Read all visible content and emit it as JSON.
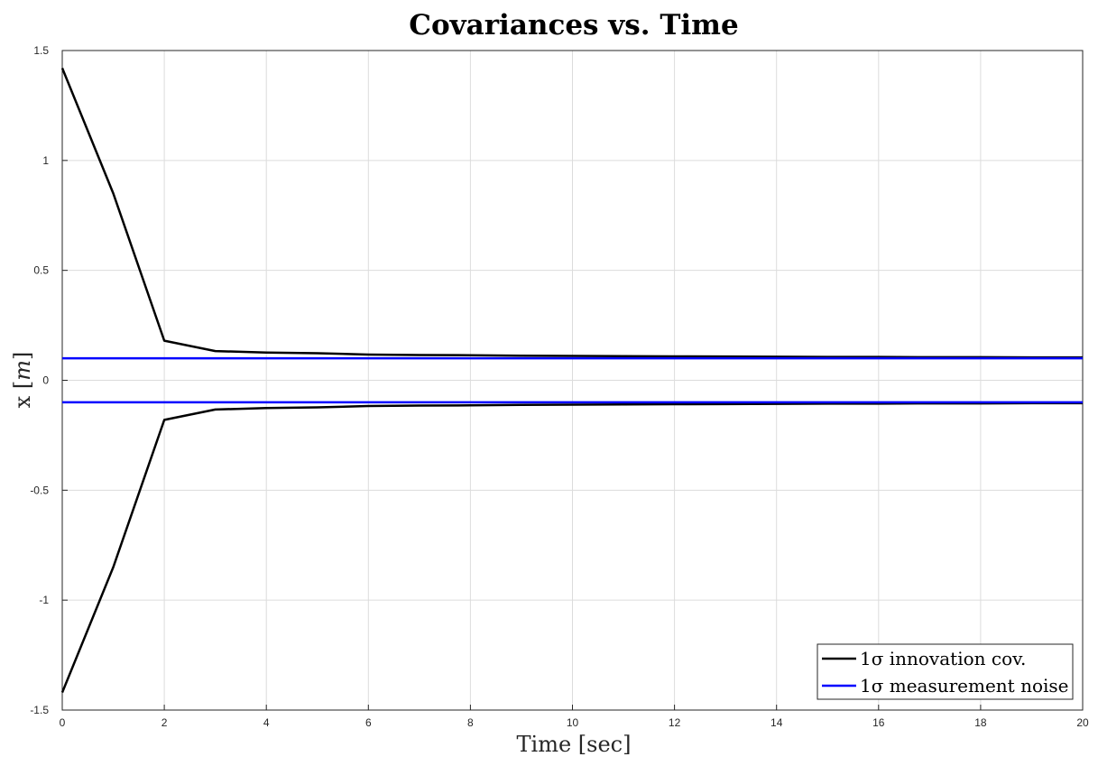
{
  "chart_data": {
    "type": "line",
    "title": "Covariances vs. Time",
    "xlabel": "Time [sec]",
    "ylabel_prefix": "x [",
    "ylabel_italic": "m",
    "ylabel_suffix": "]",
    "xlim": [
      0,
      20
    ],
    "ylim": [
      -1.5,
      1.5
    ],
    "xticks": [
      0,
      2,
      4,
      6,
      8,
      10,
      12,
      14,
      16,
      18,
      20
    ],
    "yticks": [
      -1.5,
      -1,
      -0.5,
      0,
      0.5,
      1,
      1.5
    ],
    "xtick_labels": [
      "0",
      "2",
      "4",
      "6",
      "8",
      "10",
      "12",
      "14",
      "16",
      "18",
      "20"
    ],
    "ytick_labels": [
      "-1.5",
      "-1",
      "-0.5",
      "0",
      "0.5",
      "1",
      "1.5"
    ],
    "grid": true,
    "legend_position": "bottom-right",
    "series": [
      {
        "name": "1σ innovation cov.",
        "color": "#000000",
        "x": [
          0,
          1,
          2,
          3,
          4,
          5,
          6,
          7,
          8,
          9,
          10,
          11,
          12,
          13,
          14,
          15,
          16,
          17,
          18,
          19,
          20
        ],
        "y": [
          1.42,
          0.85,
          0.18,
          0.133,
          0.126,
          0.123,
          0.117,
          0.115,
          0.114,
          0.112,
          0.111,
          0.11,
          0.109,
          0.108,
          0.107,
          0.106,
          0.106,
          0.105,
          0.105,
          0.104,
          0.104
        ]
      },
      {
        "name": "",
        "color": "#000000",
        "x": [
          0,
          1,
          2,
          3,
          4,
          5,
          6,
          7,
          8,
          9,
          10,
          11,
          12,
          13,
          14,
          15,
          16,
          17,
          18,
          19,
          20
        ],
        "y": [
          -1.42,
          -0.85,
          -0.18,
          -0.133,
          -0.126,
          -0.123,
          -0.117,
          -0.115,
          -0.114,
          -0.112,
          -0.111,
          -0.11,
          -0.109,
          -0.108,
          -0.107,
          -0.106,
          -0.106,
          -0.105,
          -0.105,
          -0.104,
          -0.104
        ]
      },
      {
        "name": "1σ measurement noise",
        "color": "#0000ff",
        "x": [
          0,
          20
        ],
        "y": [
          0.1,
          0.1
        ]
      },
      {
        "name": "",
        "color": "#0000ff",
        "x": [
          0,
          20
        ],
        "y": [
          -0.1,
          -0.1
        ]
      }
    ],
    "legend": [
      {
        "label": "1σ innovation cov.",
        "color": "#000000"
      },
      {
        "label": "1σ measurement noise",
        "color": "#0000ff"
      }
    ]
  }
}
